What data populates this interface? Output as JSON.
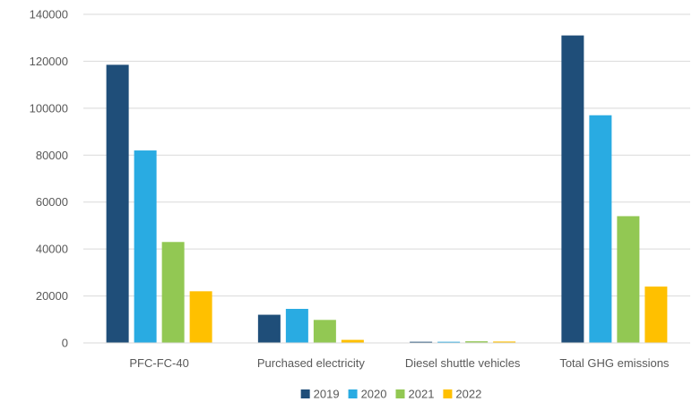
{
  "chart_data": {
    "type": "bar",
    "title": "",
    "xlabel": "",
    "ylabel": "",
    "categories": [
      "PFC-FC-40",
      "Purchased electricity",
      "Diesel shuttle vehicles",
      "Total GHG emissions"
    ],
    "series": [
      {
        "name": "2019",
        "color": "#1f4e79",
        "values": [
          118500,
          12000,
          500,
          131000
        ]
      },
      {
        "name": "2020",
        "color": "#29abe2",
        "values": [
          82000,
          14500,
          500,
          97000
        ]
      },
      {
        "name": "2021",
        "color": "#92c853",
        "values": [
          43000,
          9800,
          700,
          54000
        ]
      },
      {
        "name": "2022",
        "color": "#ffc000",
        "values": [
          22000,
          1300,
          600,
          24000
        ]
      }
    ],
    "ylim": [
      0,
      140000
    ],
    "yticks": [
      "0",
      "20000",
      "40000",
      "60000",
      "80000",
      "100000",
      "120000",
      "140000"
    ],
    "grid": true,
    "legend_position": "bottom"
  }
}
